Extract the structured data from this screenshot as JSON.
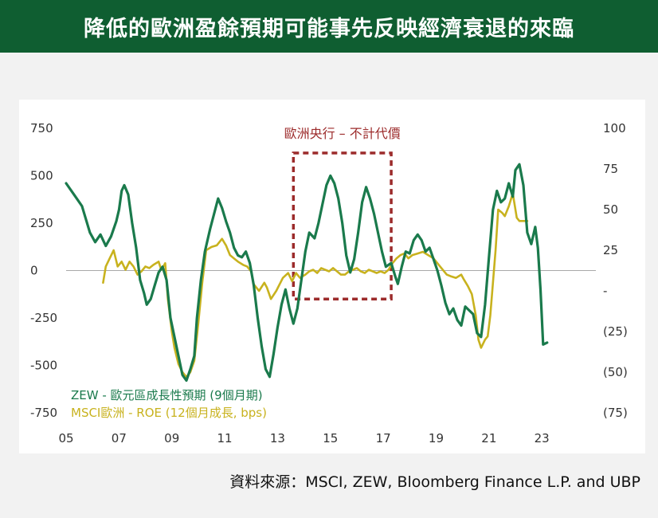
{
  "header": {
    "title": "降低的歐洲盈餘預期可能事先反映經濟衰退的來臨"
  },
  "source": "資料來源：MSCI, ZEW, Bloomberg Finance L.P. and UBP",
  "colors": {
    "zew": "#1a7a4c",
    "roe": "#c8b21e",
    "box": "#9c2b2b",
    "header_bg": "#0f5e31",
    "zero_line": "#a8a8a8"
  },
  "chart_data": {
    "type": "line",
    "annotation": "歐洲央行 – 不計代價",
    "annotation_box": {
      "x_start": 2013.6,
      "x_end": 2017.3,
      "y_top": 620,
      "y_bottom": -150
    },
    "x_axis": {
      "range": [
        2005,
        2024.2
      ],
      "ticks": [
        2005,
        2007,
        2009,
        2011,
        2013,
        2015,
        2017,
        2019,
        2021,
        2023
      ],
      "tick_labels": [
        "05",
        "07",
        "09",
        "11",
        "13",
        "15",
        "17",
        "19",
        "21",
        "23"
      ]
    },
    "y_left": {
      "range": [
        -750,
        750
      ],
      "ticks": [
        750,
        500,
        250,
        0,
        -250,
        -500,
        -750
      ],
      "tick_labels": [
        "750",
        "500",
        "250",
        "0",
        "-250",
        "-500",
        "-750"
      ]
    },
    "y_right": {
      "range": [
        -75,
        100
      ],
      "ticks": [
        100,
        75,
        50,
        25,
        0,
        -25,
        -50,
        -75
      ],
      "tick_labels": [
        "100",
        "75",
        "50",
        "25",
        "-",
        "(25)",
        "(50)",
        "(75)"
      ]
    },
    "series": [
      {
        "name": "ZEW - 歐元區成長性預期 (9個月期)",
        "axis": "left",
        "points": [
          [
            2005.0,
            460
          ],
          [
            2005.3,
            400
          ],
          [
            2005.6,
            340
          ],
          [
            2005.9,
            200
          ],
          [
            2006.1,
            150
          ],
          [
            2006.3,
            190
          ],
          [
            2006.5,
            130
          ],
          [
            2006.7,
            180
          ],
          [
            2006.9,
            260
          ],
          [
            2007.0,
            320
          ],
          [
            2007.1,
            420
          ],
          [
            2007.2,
            450
          ],
          [
            2007.35,
            400
          ],
          [
            2007.5,
            250
          ],
          [
            2007.65,
            120
          ],
          [
            2007.8,
            -50
          ],
          [
            2007.95,
            -120
          ],
          [
            2008.05,
            -180
          ],
          [
            2008.2,
            -150
          ],
          [
            2008.35,
            -80
          ],
          [
            2008.5,
            -10
          ],
          [
            2008.65,
            20
          ],
          [
            2008.8,
            -50
          ],
          [
            2008.95,
            -250
          ],
          [
            2009.1,
            -350
          ],
          [
            2009.25,
            -450
          ],
          [
            2009.4,
            -550
          ],
          [
            2009.55,
            -580
          ],
          [
            2009.7,
            -520
          ],
          [
            2009.85,
            -450
          ],
          [
            2009.95,
            -250
          ],
          [
            2010.1,
            -50
          ],
          [
            2010.25,
            100
          ],
          [
            2010.45,
            220
          ],
          [
            2010.6,
            300
          ],
          [
            2010.75,
            380
          ],
          [
            2010.9,
            330
          ],
          [
            2011.05,
            260
          ],
          [
            2011.2,
            200
          ],
          [
            2011.35,
            120
          ],
          [
            2011.5,
            80
          ],
          [
            2011.65,
            70
          ],
          [
            2011.8,
            100
          ],
          [
            2011.95,
            40
          ],
          [
            2012.1,
            -80
          ],
          [
            2012.25,
            -250
          ],
          [
            2012.4,
            -400
          ],
          [
            2012.55,
            -520
          ],
          [
            2012.7,
            -560
          ],
          [
            2012.85,
            -440
          ],
          [
            2013.0,
            -300
          ],
          [
            2013.15,
            -180
          ],
          [
            2013.3,
            -100
          ],
          [
            2013.45,
            -200
          ],
          [
            2013.6,
            -280
          ],
          [
            2013.75,
            -200
          ],
          [
            2013.9,
            -50
          ],
          [
            2014.05,
            100
          ],
          [
            2014.2,
            200
          ],
          [
            2014.4,
            170
          ],
          [
            2014.55,
            250
          ],
          [
            2014.7,
            350
          ],
          [
            2014.85,
            450
          ],
          [
            2015.0,
            500
          ],
          [
            2015.15,
            460
          ],
          [
            2015.3,
            380
          ],
          [
            2015.45,
            250
          ],
          [
            2015.6,
            80
          ],
          [
            2015.75,
            -10
          ],
          [
            2015.9,
            60
          ],
          [
            2016.05,
            200
          ],
          [
            2016.2,
            360
          ],
          [
            2016.35,
            440
          ],
          [
            2016.5,
            380
          ],
          [
            2016.65,
            300
          ],
          [
            2016.8,
            200
          ],
          [
            2016.95,
            100
          ],
          [
            2017.1,
            20
          ],
          [
            2017.3,
            40
          ],
          [
            2017.45,
            -30
          ],
          [
            2017.55,
            -70
          ],
          [
            2017.7,
            20
          ],
          [
            2017.85,
            100
          ],
          [
            2018.0,
            90
          ],
          [
            2018.15,
            160
          ],
          [
            2018.3,
            190
          ],
          [
            2018.45,
            160
          ],
          [
            2018.6,
            100
          ],
          [
            2018.75,
            120
          ],
          [
            2018.9,
            60
          ],
          [
            2019.05,
            0
          ],
          [
            2019.2,
            -80
          ],
          [
            2019.35,
            -170
          ],
          [
            2019.5,
            -230
          ],
          [
            2019.65,
            -200
          ],
          [
            2019.8,
            -260
          ],
          [
            2019.95,
            -290
          ],
          [
            2020.1,
            -190
          ],
          [
            2020.25,
            -210
          ],
          [
            2020.4,
            -230
          ],
          [
            2020.55,
            -330
          ],
          [
            2020.7,
            -350
          ],
          [
            2020.85,
            -180
          ],
          [
            2021.0,
            70
          ],
          [
            2021.15,
            320
          ],
          [
            2021.3,
            420
          ],
          [
            2021.45,
            360
          ],
          [
            2021.6,
            380
          ],
          [
            2021.75,
            460
          ],
          [
            2021.9,
            390
          ],
          [
            2022.0,
            530
          ],
          [
            2022.15,
            560
          ],
          [
            2022.3,
            450
          ],
          [
            2022.45,
            200
          ],
          [
            2022.6,
            140
          ],
          [
            2022.75,
            230
          ],
          [
            2022.85,
            120
          ],
          [
            2022.95,
            -100
          ],
          [
            2023.05,
            -390
          ],
          [
            2023.2,
            -380
          ]
        ]
      },
      {
        "name": "MSCI歐洲 - ROE (12個月成長, bps)",
        "axis": "right",
        "points": [
          [
            2006.4,
            5
          ],
          [
            2006.5,
            15
          ],
          [
            2006.65,
            20
          ],
          [
            2006.8,
            25
          ],
          [
            2006.95,
            15
          ],
          [
            2007.1,
            18
          ],
          [
            2007.25,
            13
          ],
          [
            2007.4,
            18
          ],
          [
            2007.55,
            15
          ],
          [
            2007.7,
            10
          ],
          [
            2007.85,
            12
          ],
          [
            2008.0,
            15
          ],
          [
            2008.15,
            14
          ],
          [
            2008.3,
            16
          ],
          [
            2008.5,
            18
          ],
          [
            2008.6,
            13
          ],
          [
            2008.75,
            17
          ],
          [
            2008.85,
            -5
          ],
          [
            2009.0,
            -25
          ],
          [
            2009.1,
            -35
          ],
          [
            2009.25,
            -45
          ],
          [
            2009.4,
            -50
          ],
          [
            2009.55,
            -53
          ],
          [
            2009.7,
            -50
          ],
          [
            2009.85,
            -43
          ],
          [
            2010.0,
            -20
          ],
          [
            2010.15,
            5
          ],
          [
            2010.3,
            25
          ],
          [
            2010.5,
            27
          ],
          [
            2010.7,
            28
          ],
          [
            2010.9,
            32
          ],
          [
            2011.05,
            28
          ],
          [
            2011.2,
            22
          ],
          [
            2011.35,
            20
          ],
          [
            2011.5,
            18
          ],
          [
            2011.7,
            16
          ],
          [
            2011.85,
            15
          ],
          [
            2012.0,
            12
          ],
          [
            2012.1,
            4
          ],
          [
            2012.3,
            0
          ],
          [
            2012.5,
            5
          ],
          [
            2012.6,
            2
          ],
          [
            2012.75,
            -5
          ],
          [
            2012.95,
            0
          ],
          [
            2013.2,
            8
          ],
          [
            2013.4,
            11
          ],
          [
            2013.55,
            6
          ],
          [
            2013.7,
            11
          ],
          [
            2013.85,
            8
          ],
          [
            2014.05,
            10
          ],
          [
            2014.2,
            12
          ],
          [
            2014.35,
            13
          ],
          [
            2014.5,
            11
          ],
          [
            2014.65,
            14
          ],
          [
            2014.8,
            13
          ],
          [
            2014.95,
            12
          ],
          [
            2015.1,
            14
          ],
          [
            2015.25,
            12
          ],
          [
            2015.4,
            10
          ],
          [
            2015.55,
            10
          ],
          [
            2015.7,
            12
          ],
          [
            2015.85,
            13
          ],
          [
            2016.0,
            14
          ],
          [
            2016.15,
            12
          ],
          [
            2016.3,
            11
          ],
          [
            2016.45,
            13
          ],
          [
            2016.6,
            12
          ],
          [
            2016.75,
            11
          ],
          [
            2016.9,
            12
          ],
          [
            2017.05,
            11
          ],
          [
            2017.2,
            13
          ],
          [
            2017.35,
            17
          ],
          [
            2017.5,
            20
          ],
          [
            2017.65,
            22
          ],
          [
            2017.8,
            23
          ],
          [
            2017.95,
            20
          ],
          [
            2018.1,
            22
          ],
          [
            2018.3,
            23
          ],
          [
            2018.5,
            24
          ],
          [
            2018.7,
            22
          ],
          [
            2018.9,
            20
          ],
          [
            2019.0,
            18
          ],
          [
            2019.2,
            14
          ],
          [
            2019.4,
            10
          ],
          [
            2019.55,
            9
          ],
          [
            2019.75,
            8
          ],
          [
            2019.95,
            10
          ],
          [
            2020.05,
            7
          ],
          [
            2020.2,
            3
          ],
          [
            2020.35,
            -2
          ],
          [
            2020.5,
            -15
          ],
          [
            2020.6,
            -30
          ],
          [
            2020.7,
            -35
          ],
          [
            2020.85,
            -30
          ],
          [
            2020.95,
            -28
          ],
          [
            2021.05,
            -15
          ],
          [
            2021.15,
            5
          ],
          [
            2021.25,
            25
          ],
          [
            2021.35,
            50
          ],
          [
            2021.5,
            48
          ],
          [
            2021.6,
            46
          ],
          [
            2021.75,
            52
          ],
          [
            2021.9,
            60
          ],
          [
            2022.05,
            45
          ],
          [
            2022.15,
            43
          ],
          [
            2022.3,
            43
          ],
          [
            2022.45,
            43
          ]
        ]
      }
    ]
  }
}
